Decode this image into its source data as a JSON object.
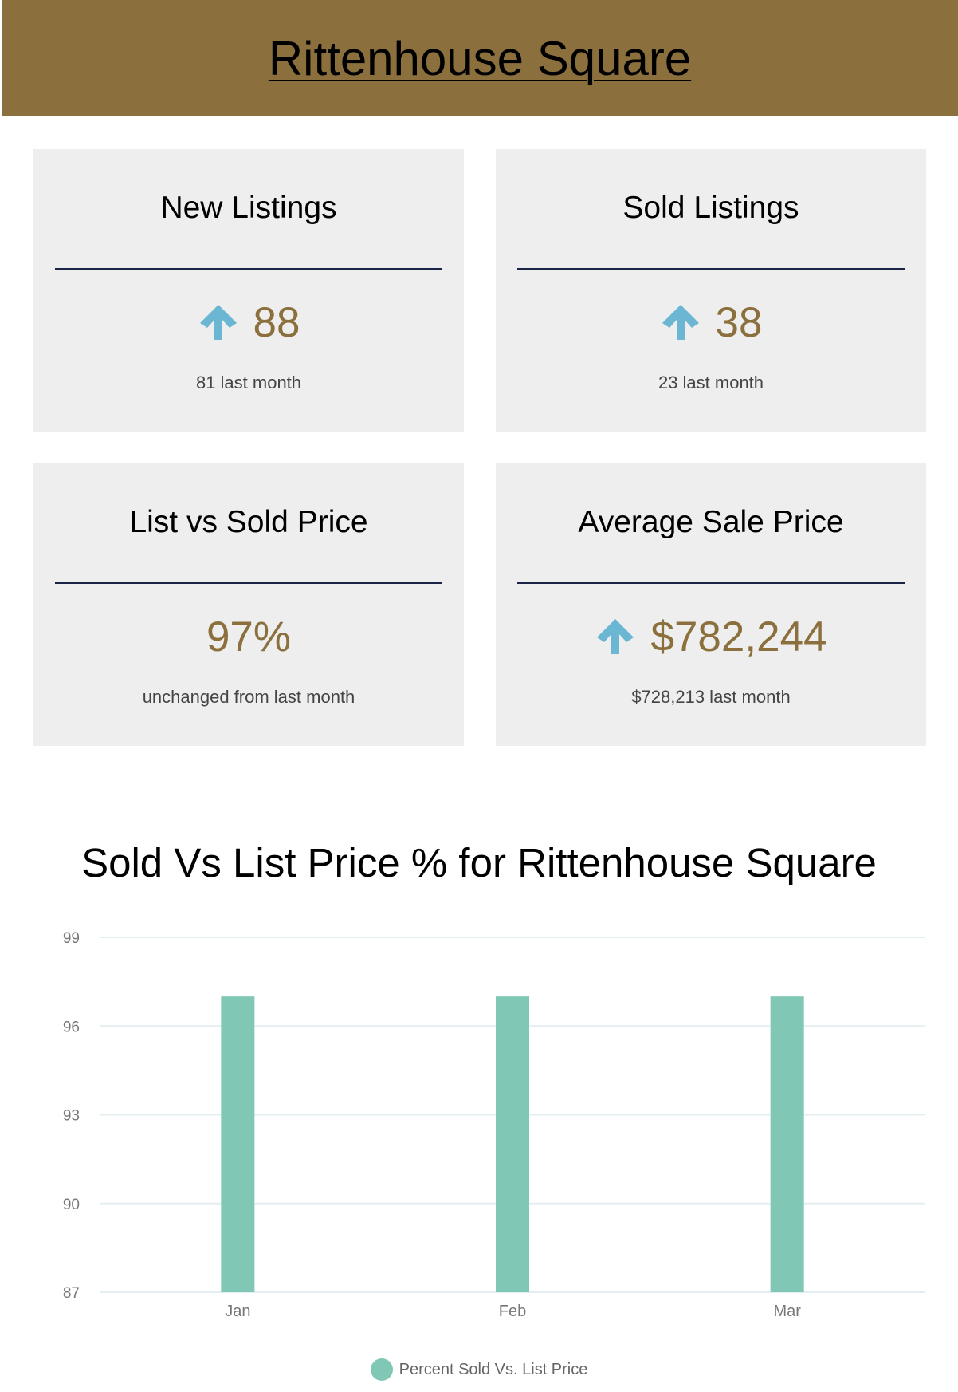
{
  "header": {
    "title": "Rittenhouse Square"
  },
  "cards": [
    {
      "title": "New Listings",
      "value": "88",
      "trend": "up",
      "sub": "81 last month"
    },
    {
      "title": "Sold Listings",
      "value": "38",
      "trend": "up",
      "sub": "23 last month"
    },
    {
      "title": "List vs Sold Price",
      "value": "97%",
      "trend": "none",
      "sub": "unchanged from last month"
    },
    {
      "title": "Average Sale Price",
      "value": "$782,244",
      "trend": "up",
      "sub": "$728,213 last month"
    }
  ],
  "colors": {
    "brand": "#8b703e",
    "arrow": "#6bb6d3",
    "card_bg": "#eeeeee",
    "bar": "#80c8b5",
    "rule": "#1b2444"
  },
  "chart_data": {
    "type": "bar",
    "title": "Sold Vs List Price % for Rittenhouse Square",
    "categories": [
      "Jan",
      "Feb",
      "Mar"
    ],
    "series": [
      {
        "name": "Percent Sold Vs. List Price",
        "values": [
          97,
          97,
          97
        ]
      }
    ],
    "ylim": [
      87,
      99
    ],
    "yticks": [
      87,
      90,
      93,
      96,
      99
    ],
    "grid": true,
    "legend": "bottom-center"
  }
}
